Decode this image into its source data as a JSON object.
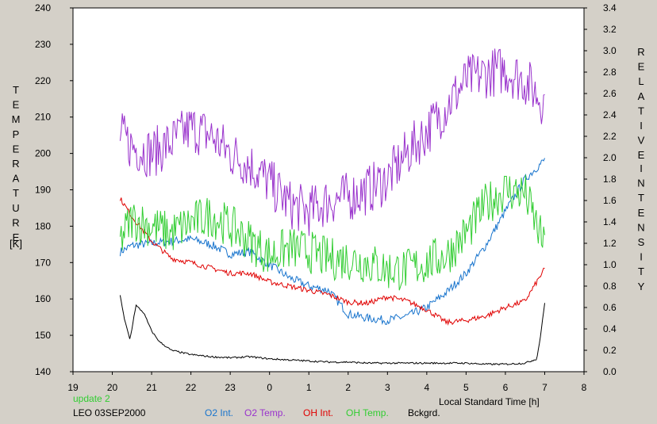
{
  "chart_data": {
    "type": "line",
    "left_axis": {
      "label_letters": [
        "T",
        "E",
        "M",
        "P",
        "E",
        "R",
        "A",
        "T",
        "U",
        "R",
        "E"
      ],
      "unit": "[K]",
      "min": 140,
      "max": 240,
      "ticks": [
        "140",
        "150",
        "160",
        "170",
        "180",
        "190",
        "200",
        "210",
        "220",
        "230",
        "240"
      ]
    },
    "right_axis": {
      "label_word1": [
        "R",
        "E",
        "L",
        "A",
        "T",
        "I",
        "V",
        "E"
      ],
      "label_word2": [
        "I",
        "N",
        "T",
        "E",
        "N",
        "S",
        "I",
        "T",
        "Y"
      ],
      "min": 0.0,
      "max": 3.4,
      "ticks": [
        "0.0",
        "0.2",
        "0.4",
        "0.6",
        "0.8",
        "1.0",
        "1.2",
        "1.4",
        "1.6",
        "1.8",
        "2.0",
        "2.2",
        "2.4",
        "2.6",
        "2.8",
        "3.0",
        "3.2",
        "3.4"
      ]
    },
    "x_axis": {
      "label": "Local Standard Time [h]",
      "ticks": [
        "19",
        "20",
        "21",
        "22",
        "23",
        "0",
        "1",
        "2",
        "3",
        "4",
        "5",
        "6",
        "7",
        "8"
      ]
    },
    "grid": false,
    "annotations": {
      "update": "update 2",
      "station": "LEO 03SEP2000"
    },
    "series": [
      {
        "name": "O2 Int.",
        "axis": "right",
        "color": "#1874cd",
        "x": [
          20.2,
          20.5,
          21.0,
          21.5,
          22.0,
          22.5,
          23.0,
          23.5,
          24.0,
          24.5,
          25.0,
          25.5,
          26.0,
          26.5,
          27.0,
          27.5,
          28.0,
          28.5,
          29.0,
          29.5,
          30.0,
          30.5,
          31.0
        ],
        "values": [
          1.12,
          1.18,
          1.2,
          1.22,
          1.24,
          1.19,
          1.1,
          1.12,
          1.0,
          0.88,
          0.8,
          0.76,
          0.54,
          0.5,
          0.48,
          0.52,
          0.6,
          0.74,
          0.92,
          1.18,
          1.5,
          1.8,
          1.98
        ],
        "noise": 0.04
      },
      {
        "name": "O2 Temp.",
        "axis": "left",
        "color": "#9932cc",
        "x": [
          20.2,
          20.5,
          21.0,
          21.5,
          22.0,
          22.5,
          23.0,
          23.5,
          24.0,
          24.5,
          25.0,
          25.5,
          26.0,
          26.5,
          27.0,
          27.5,
          28.0,
          28.5,
          29.0,
          29.5,
          30.0,
          30.5,
          31.0
        ],
        "values": [
          205,
          202,
          200,
          203,
          207,
          205,
          200,
          197,
          192,
          186,
          184,
          187,
          188,
          190,
          193,
          200,
          206,
          213,
          220,
          222,
          223,
          220,
          214
        ],
        "noise": 7
      },
      {
        "name": "OH Int.",
        "axis": "right",
        "color": "#e00000",
        "x": [
          20.2,
          20.5,
          21.0,
          21.5,
          22.0,
          22.5,
          23.0,
          23.5,
          24.0,
          24.5,
          25.0,
          25.5,
          26.0,
          26.5,
          27.0,
          27.5,
          28.0,
          28.5,
          29.0,
          29.5,
          30.0,
          30.5,
          31.0
        ],
        "values": [
          1.62,
          1.45,
          1.22,
          1.06,
          1.02,
          0.97,
          0.92,
          0.92,
          0.84,
          0.8,
          0.76,
          0.72,
          0.65,
          0.64,
          0.7,
          0.66,
          0.58,
          0.46,
          0.48,
          0.52,
          0.6,
          0.66,
          0.96
        ],
        "noise": 0.025
      },
      {
        "name": "OH Temp.",
        "axis": "left",
        "color": "#32cd32",
        "x": [
          20.2,
          20.5,
          21.0,
          21.5,
          22.0,
          22.5,
          23.0,
          23.5,
          24.0,
          24.5,
          25.0,
          25.5,
          26.0,
          26.5,
          27.0,
          27.5,
          28.0,
          28.5,
          29.0,
          29.5,
          30.0,
          30.5,
          31.0
        ],
        "values": [
          176,
          182,
          180,
          178,
          181,
          183,
          180,
          176,
          172,
          174,
          173,
          171,
          171,
          170,
          168,
          168,
          170,
          172,
          178,
          186,
          190,
          189,
          174
        ],
        "noise": 6
      },
      {
        "name": "Bckgrd.",
        "axis": "right",
        "color": "#000000",
        "x": [
          20.2,
          20.3,
          20.45,
          20.6,
          20.8,
          21.0,
          21.2,
          21.5,
          22.0,
          22.5,
          23.0,
          23.5,
          24.0,
          24.5,
          25.0,
          25.5,
          26.0,
          26.5,
          27.0,
          27.5,
          28.0,
          28.5,
          29.0,
          29.5,
          30.0,
          30.5,
          30.8,
          30.9,
          31.0
        ],
        "values": [
          0.72,
          0.5,
          0.3,
          0.62,
          0.55,
          0.38,
          0.28,
          0.2,
          0.16,
          0.14,
          0.13,
          0.14,
          0.12,
          0.11,
          0.1,
          0.09,
          0.09,
          0.08,
          0.08,
          0.08,
          0.08,
          0.08,
          0.08,
          0.07,
          0.07,
          0.08,
          0.12,
          0.35,
          0.64
        ],
        "noise": 0.008
      }
    ]
  }
}
